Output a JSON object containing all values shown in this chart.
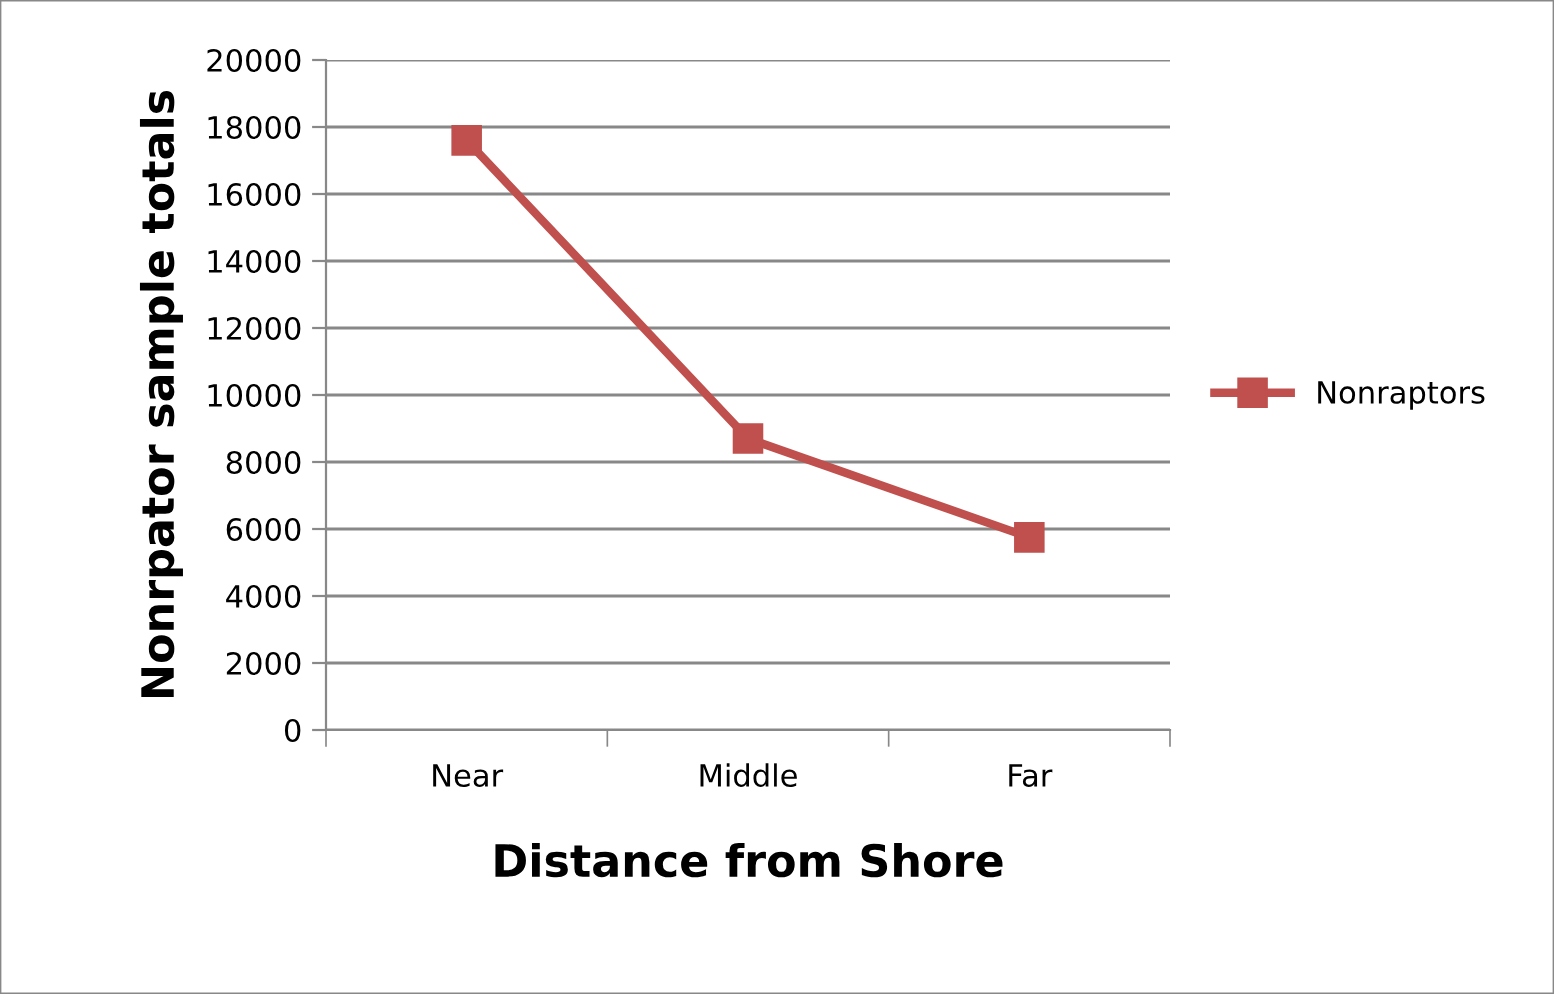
{
  "chart_data": {
    "type": "line",
    "xlabel": "Distance from Shore",
    "ylabel": "Nonrpator sample totals",
    "categories": [
      "Near",
      "Middle",
      "Far"
    ],
    "series": [
      {
        "name": "Nonraptors",
        "color": "#c0504d",
        "values": [
          17600,
          8700,
          5750
        ]
      }
    ],
    "ylim": [
      0,
      20000
    ],
    "yticks": [
      0,
      2000,
      4000,
      6000,
      8000,
      10000,
      12000,
      14000,
      16000,
      18000,
      20000
    ],
    "grid": "y",
    "legend": "right",
    "marker": "square",
    "line_style": "solid"
  }
}
